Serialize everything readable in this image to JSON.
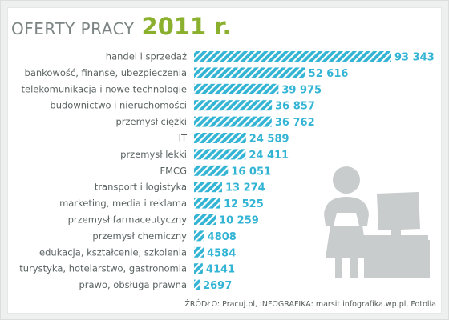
{
  "title": {
    "main": "OFERTY PRACY",
    "year": "2011 r."
  },
  "chart_data": {
    "type": "bar",
    "orientation": "horizontal",
    "categories": [
      "handel i sprzedaż",
      "bankowość, finanse, ubezpieczenia",
      "telekomunikacja i nowe technologie",
      "budownictwo i nieruchomości",
      "przemysł ciężki",
      "IT",
      "przemysł lekki",
      "FMCG",
      "transport i logistyka",
      "marketing, media i reklama",
      "przemysł farmaceutyczny",
      "przemysł chemiczny",
      "edukacja, kształcenie, szkolenia",
      "turystyka, hotelarstwo, gastronomia",
      "prawo, obsługa prawna"
    ],
    "values": [
      93343,
      52616,
      39975,
      36857,
      36762,
      24589,
      24411,
      16051,
      13274,
      12525,
      10259,
      4808,
      4584,
      4141,
      2697
    ],
    "value_labels": [
      "93 343",
      "52 616",
      "39 975",
      "36 857",
      "36 762",
      "24 589",
      "24 411",
      "16 051",
      "13 274",
      "12 525",
      "10 259",
      "4808",
      "4584",
      "4141",
      "2697"
    ],
    "title": "OFERTY PRACY 2011 r.",
    "xlabel": "",
    "ylabel": "",
    "grid": false,
    "colors": {
      "bar": "#33b4d4",
      "stripe": "#ffffff",
      "value": "#33b4d4",
      "title_main": "#7c8584",
      "title_year": "#8ab02e",
      "pictogram": "#c8cccc"
    }
  },
  "source": "ŹRÓDŁO: Pracuj.pl, INFOGRAFIKA: marsit infografika.wp.pl, Fotolia",
  "pictogram": {
    "icon": "person-at-computer-icon"
  }
}
